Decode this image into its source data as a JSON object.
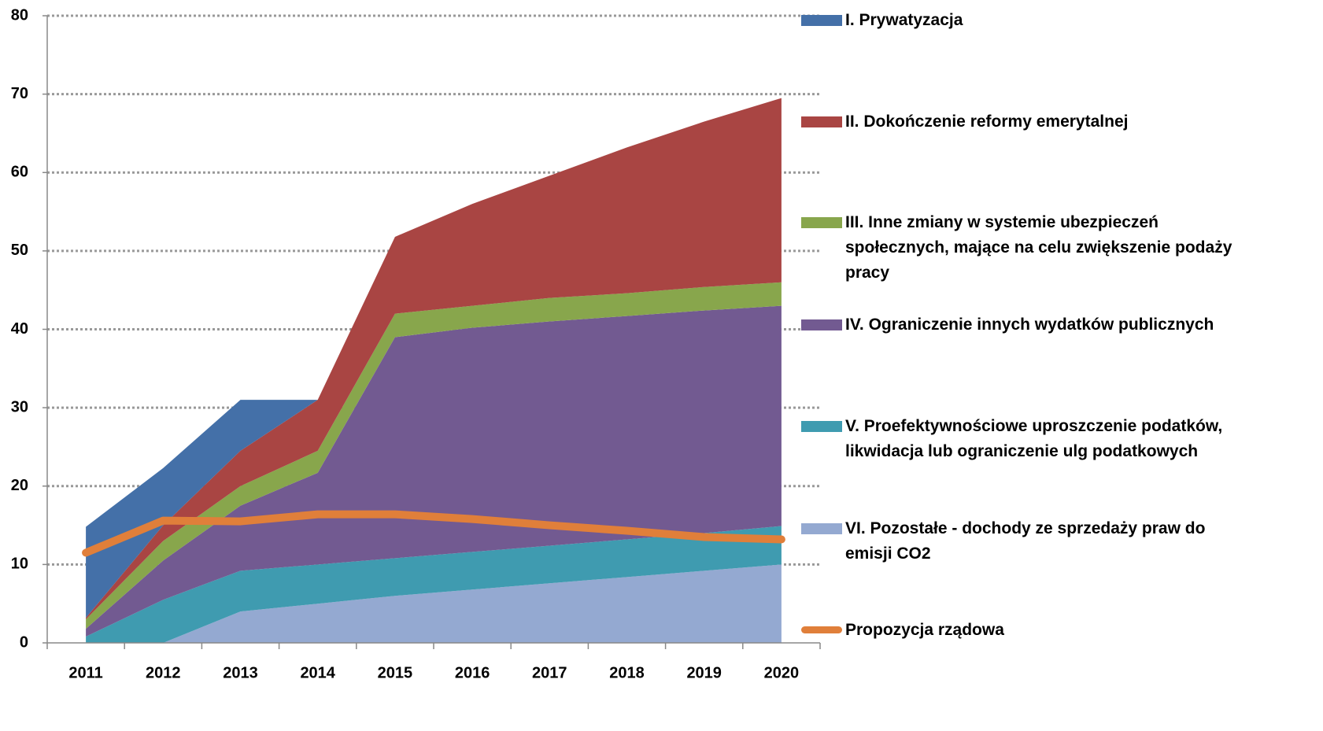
{
  "chart_data": {
    "type": "stacked_area_line",
    "categories": [
      "2011",
      "2012",
      "2013",
      "2014",
      "2015",
      "2016",
      "2017",
      "2018",
      "2019",
      "2020"
    ],
    "series": [
      {
        "name": "VI. Pozostałe - dochody ze sprzedaży praw do emisji CO2",
        "color": "#94a9d1",
        "values": [
          0,
          0,
          4,
          5,
          6,
          6.8,
          7.6,
          8.4,
          9.2,
          10
        ]
      },
      {
        "name": "V. Proefektywnościowe uproszczenie podatków, likwidacja lub ograniczenie ulg podatkowych",
        "color": "#3f9bb0",
        "values": [
          0.8,
          5.5,
          5.2,
          5,
          4.8,
          4.8,
          4.8,
          4.8,
          4.8,
          4.9
        ]
      },
      {
        "name": "IV. Ograniczenie innych wydatków publicznych",
        "color": "#725a91",
        "values": [
          1,
          5,
          8.3,
          11.7,
          28.2,
          28.6,
          28.6,
          28.5,
          28.4,
          28.1
        ]
      },
      {
        "name": "III. Inne zmiany w systemie ubezpieczeń społecznych, mające na celu zwiększenie podaży pracy",
        "color": "#88a64c",
        "values": [
          1.2,
          2.5,
          2.5,
          2.8,
          3,
          2.8,
          3,
          2.9,
          3,
          3
        ]
      },
      {
        "name": "II. Dokończenie reformy emerytalnej",
        "color": "#a94543",
        "values": [
          0.2,
          2,
          4.5,
          6.5,
          9.8,
          13,
          15.6,
          18.6,
          21.1,
          23.5
        ]
      },
      {
        "name": "I. Prywatyzacja",
        "color": "#4470a8",
        "values": [
          11.6,
          7.3,
          6.5,
          0,
          0,
          0,
          0,
          0,
          0,
          0
        ]
      }
    ],
    "line": {
      "name": "Propozycja rządowa",
      "color": "#e07f3a",
      "values": [
        11.5,
        15.6,
        15.5,
        16.4,
        16.4,
        15.8,
        15,
        14.3,
        13.5,
        13.2
      ]
    },
    "ylim": [
      0,
      80
    ],
    "yticks": [
      0,
      10,
      20,
      30,
      40,
      50,
      60,
      70,
      80
    ],
    "grid": true
  }
}
